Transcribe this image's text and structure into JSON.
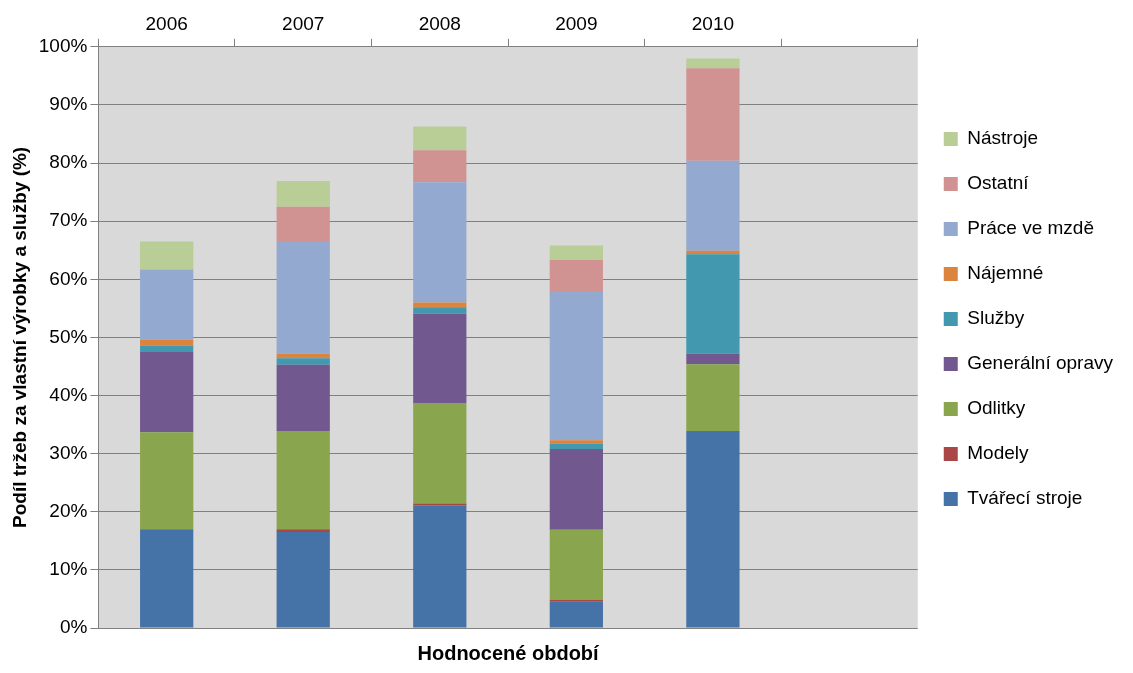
{
  "chart_data": {
    "type": "bar",
    "stacked": true,
    "xlabel": "Hodnocené období",
    "ylabel": "Podíl tržeb za vlastní výrobky a služby (%)",
    "categories": [
      "2006",
      "2007",
      "2008",
      "2009",
      "2010",
      null
    ],
    "series": [
      {
        "name": "Tvářecí stroje",
        "color": "#4572a7",
        "values": [
          17,
          16.5,
          21.1,
          4.5,
          33.9,
          null
        ]
      },
      {
        "name": "Modely",
        "color": "#aa4643",
        "values": [
          0,
          0.5,
          0.3,
          0.3,
          0,
          null
        ]
      },
      {
        "name": "Odlitky",
        "color": "#89a54e",
        "values": [
          16.7,
          16.9,
          17.3,
          12.1,
          11.5,
          null
        ]
      },
      {
        "name": "Generální opravy",
        "color": "#71588f",
        "values": [
          13.8,
          11.4,
          15.4,
          13.9,
          1.8,
          null
        ]
      },
      {
        "name": "Služby",
        "color": "#4198af",
        "values": [
          1.1,
          1.1,
          1.1,
          0.9,
          17.1,
          null
        ]
      },
      {
        "name": "Nájemné",
        "color": "#db843d",
        "values": [
          1,
          0.8,
          0.8,
          0.6,
          0.6,
          null
        ]
      },
      {
        "name": "Práce ve mzdě",
        "color": "#93a9cf",
        "values": [
          12.1,
          19.4,
          20.7,
          25.5,
          15.5,
          null
        ]
      },
      {
        "name": "Ostatní",
        "color": "#d19392",
        "values": [
          0,
          5.9,
          5.5,
          5.5,
          15.9,
          null
        ]
      },
      {
        "name": "Nástroje",
        "color": "#b9cd96",
        "values": [
          4.8,
          4.4,
          4.1,
          2.5,
          1.7,
          null
        ]
      }
    ],
    "ylim": [
      0,
      100
    ],
    "yticks": [
      {
        "value": 0,
        "label": "0%"
      },
      {
        "value": 10,
        "label": "10%"
      },
      {
        "value": 20,
        "label": "20%"
      },
      {
        "value": 30,
        "label": "30%"
      },
      {
        "value": 40,
        "label": "40%"
      },
      {
        "value": 50,
        "label": "50%"
      },
      {
        "value": 60,
        "label": "60%"
      },
      {
        "value": 70,
        "label": "70%"
      },
      {
        "value": 80,
        "label": "80%"
      },
      {
        "value": 90,
        "label": "90%"
      },
      {
        "value": 100,
        "label": "100%"
      }
    ],
    "grid": "y",
    "legend": "right"
  }
}
